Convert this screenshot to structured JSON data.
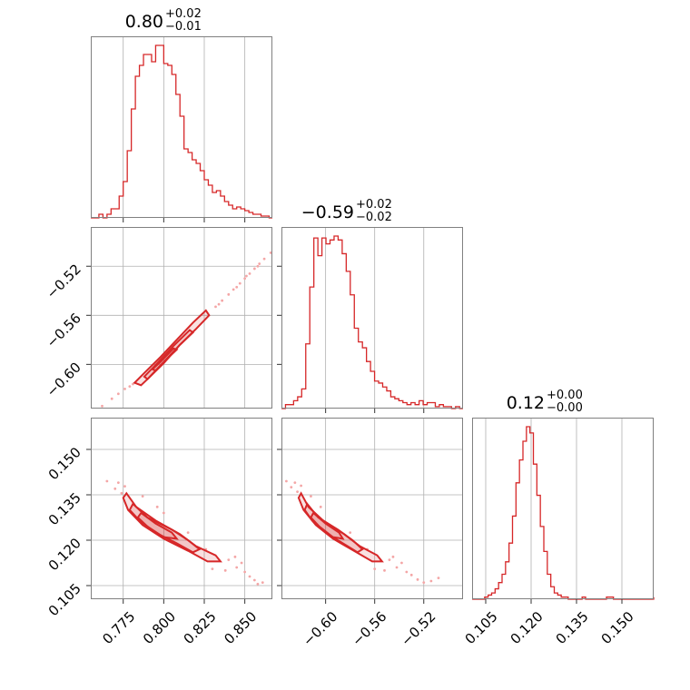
{
  "chart_data": {
    "type": "corner",
    "color": "#d62728",
    "parameters": [
      {
        "title_value": "0.80",
        "title_plus": "+0.02",
        "title_minus": "−0.01",
        "range": [
          0.755,
          0.867
        ],
        "ticks": [
          0.775,
          0.8,
          0.825,
          0.85
        ],
        "tick_labels": [
          "0.775",
          "0.800",
          "0.825",
          "0.850"
        ],
        "hist": {
          "edges_start": 0.755,
          "bin_width": 0.0025,
          "counts": [
            0,
            0,
            0.02,
            0,
            0.02,
            0.05,
            0.05,
            0.12,
            0.2,
            0.37,
            0.6,
            0.78,
            0.84,
            0.9,
            0.9,
            0.86,
            0.95,
            0.95,
            0.85,
            0.84,
            0.79,
            0.68,
            0.56,
            0.38,
            0.36,
            0.32,
            0.3,
            0.26,
            0.21,
            0.18,
            0.14,
            0.15,
            0.12,
            0.09,
            0.07,
            0.05,
            0.06,
            0.05,
            0.04,
            0.03,
            0.02,
            0.02,
            0.01,
            0.01,
            0.0
          ]
        }
      },
      {
        "title_value": "−0.59",
        "title_plus": "+0.02",
        "title_minus": "−0.02",
        "range": [
          -0.636,
          -0.488
        ],
        "ticks": [
          -0.6,
          -0.56,
          -0.52
        ],
        "tick_labels": [
          "−0.60",
          "−0.56",
          "−0.52"
        ],
        "hist": {
          "edges_start": -0.636,
          "bin_width": 0.0033,
          "counts": [
            0,
            0.02,
            0.02,
            0.04,
            0.06,
            0.1,
            0.33,
            0.62,
            0.87,
            0.78,
            0.87,
            0.84,
            0.86,
            0.88,
            0.86,
            0.79,
            0.7,
            0.58,
            0.41,
            0.34,
            0.31,
            0.24,
            0.19,
            0.14,
            0.13,
            0.11,
            0.09,
            0.06,
            0.05,
            0.04,
            0.03,
            0.02,
            0.03,
            0.02,
            0.04,
            0.02,
            0.03,
            0.03,
            0.01,
            0.02,
            0.01,
            0.01,
            0.0,
            0.01,
            0.0
          ]
        }
      },
      {
        "title_value": "0.12",
        "title_plus": "+0.00",
        "title_minus": "−0.00",
        "range": [
          0.1005,
          0.1605
        ],
        "ticks": [
          0.105,
          0.12,
          0.135,
          0.15
        ],
        "tick_labels": [
          "0.105",
          "0.120",
          "0.135",
          "0.150"
        ],
        "hist": {
          "edges_start": 0.1035,
          "bin_width": 0.00115,
          "counts": [
            0,
            0.01,
            0.02,
            0.03,
            0.05,
            0.08,
            0.12,
            0.18,
            0.27,
            0.4,
            0.56,
            0.67,
            0.76,
            0.83,
            0.8,
            0.65,
            0.5,
            0.35,
            0.23,
            0.12,
            0.06,
            0.03,
            0.02,
            0.01,
            0.01,
            0,
            0,
            0,
            0,
            0.01,
            0,
            0,
            0,
            0,
            0,
            0,
            0.01,
            0.01,
            0,
            0,
            0,
            0,
            0,
            0,
            0,
            0,
            0,
            0,
            0,
            0,
            0,
            0.01
          ]
        }
      }
    ],
    "pairs": [
      {
        "row": 1,
        "col": 0,
        "contours": [
          [
            [
              0.786,
              -0.617
            ],
            [
              0.79,
              -0.612
            ],
            [
              0.8,
              -0.599
            ],
            [
              0.81,
              -0.584
            ],
            [
              0.82,
              -0.571
            ],
            [
              0.828,
              -0.56
            ],
            [
              0.826,
              -0.556
            ],
            [
              0.818,
              -0.566
            ],
            [
              0.808,
              -0.58
            ],
            [
              0.798,
              -0.594
            ],
            [
              0.788,
              -0.607
            ],
            [
              0.782,
              -0.615
            ]
          ],
          [
            [
              0.79,
              -0.612
            ],
            [
              0.8,
              -0.598
            ],
            [
              0.81,
              -0.584
            ],
            [
              0.818,
              -0.574
            ],
            [
              0.816,
              -0.572
            ],
            [
              0.806,
              -0.585
            ],
            [
              0.796,
              -0.599
            ],
            [
              0.788,
              -0.61
            ]
          ],
          [
            [
              0.795,
              -0.605
            ],
            [
              0.804,
              -0.593
            ],
            [
              0.808,
              -0.588
            ],
            [
              0.806,
              -0.587
            ],
            [
              0.798,
              -0.598
            ],
            [
              0.793,
              -0.604
            ]
          ]
        ],
        "scatter": [
          [
            0.762,
            -0.634
          ],
          [
            0.768,
            -0.628
          ],
          [
            0.772,
            -0.624
          ],
          [
            0.776,
            -0.62
          ],
          [
            0.779,
            -0.618
          ],
          [
            0.781,
            -0.616
          ],
          [
            0.832,
            -0.553
          ],
          [
            0.836,
            -0.548
          ],
          [
            0.84,
            -0.543
          ],
          [
            0.843,
            -0.539
          ],
          [
            0.847,
            -0.534
          ],
          [
            0.85,
            -0.53
          ],
          [
            0.853,
            -0.526
          ],
          [
            0.856,
            -0.522
          ],
          [
            0.859,
            -0.518
          ],
          [
            0.862,
            -0.514
          ],
          [
            0.866,
            -0.509
          ],
          [
            0.834,
            -0.551
          ],
          [
            0.845,
            -0.537
          ],
          [
            0.851,
            -0.528
          ],
          [
            0.858,
            -0.52
          ]
        ]
      },
      {
        "row": 2,
        "col": 0,
        "contours": [
          [
            [
              0.777,
              0.1355
            ],
            [
              0.783,
              0.131
            ],
            [
              0.795,
              0.1265
            ],
            [
              0.81,
              0.122
            ],
            [
              0.82,
              0.118
            ],
            [
              0.832,
              0.115
            ],
            [
              0.835,
              0.113
            ],
            [
              0.827,
              0.113
            ],
            [
              0.815,
              0.1165
            ],
            [
              0.8,
              0.1205
            ],
            [
              0.787,
              0.125
            ],
            [
              0.778,
              0.13
            ],
            [
              0.775,
              0.134
            ]
          ],
          [
            [
              0.781,
              0.132
            ],
            [
              0.79,
              0.1275
            ],
            [
              0.805,
              0.1235
            ],
            [
              0.815,
              0.12
            ],
            [
              0.822,
              0.117
            ],
            [
              0.818,
              0.116
            ],
            [
              0.808,
              0.119
            ],
            [
              0.795,
              0.1225
            ],
            [
              0.785,
              0.1265
            ],
            [
              0.779,
              0.13
            ]
          ],
          [
            [
              0.786,
              0.129
            ],
            [
              0.795,
              0.1255
            ],
            [
              0.805,
              0.1225
            ],
            [
              0.808,
              0.1205
            ],
            [
              0.8,
              0.121
            ],
            [
              0.79,
              0.1245
            ],
            [
              0.784,
              0.1275
            ]
          ]
        ],
        "scatter": [
          [
            0.765,
            0.1395
          ],
          [
            0.77,
            0.137
          ],
          [
            0.772,
            0.139
          ],
          [
            0.774,
            0.1355
          ],
          [
            0.776,
            0.1378
          ],
          [
            0.84,
            0.1135
          ],
          [
            0.845,
            0.111
          ],
          [
            0.848,
            0.1125
          ],
          [
            0.85,
            0.1095
          ],
          [
            0.853,
            0.108
          ],
          [
            0.856,
            0.1068
          ],
          [
            0.858,
            0.1055
          ],
          [
            0.861,
            0.106
          ],
          [
            0.838,
            0.11
          ],
          [
            0.83,
            0.1105
          ],
          [
            0.844,
            0.1145
          ],
          [
            0.826,
            0.117
          ],
          [
            0.815,
            0.1225
          ],
          [
            0.796,
            0.131
          ],
          [
            0.787,
            0.1345
          ],
          [
            0.8,
            0.129
          ]
        ]
      },
      {
        "row": 2,
        "col": 1,
        "contours": [
          [
            [
              -0.62,
              0.1355
            ],
            [
              -0.614,
              0.131
            ],
            [
              -0.602,
              0.1265
            ],
            [
              -0.585,
              0.122
            ],
            [
              -0.572,
              0.118
            ],
            [
              -0.558,
              0.115
            ],
            [
              -0.554,
              0.113
            ],
            [
              -0.562,
              0.113
            ],
            [
              -0.577,
              0.1165
            ],
            [
              -0.594,
              0.1205
            ],
            [
              -0.608,
              0.125
            ],
            [
              -0.618,
              0.13
            ],
            [
              -0.622,
              0.134
            ]
          ],
          [
            [
              -0.615,
              0.132
            ],
            [
              -0.606,
              0.1275
            ],
            [
              -0.59,
              0.1235
            ],
            [
              -0.578,
              0.12
            ],
            [
              -0.57,
              0.117
            ],
            [
              -0.574,
              0.116
            ],
            [
              -0.586,
              0.119
            ],
            [
              -0.6,
              0.1225
            ],
            [
              -0.611,
              0.1265
            ],
            [
              -0.617,
              0.13
            ]
          ],
          [
            [
              -0.61,
              0.129
            ],
            [
              -0.6,
              0.1255
            ],
            [
              -0.589,
              0.1225
            ],
            [
              -0.586,
              0.1205
            ],
            [
              -0.594,
              0.121
            ],
            [
              -0.605,
              0.1245
            ],
            [
              -0.612,
              0.1275
            ]
          ]
        ],
        "scatter": [
          [
            -0.632,
            0.1395
          ],
          [
            -0.628,
            0.1375
          ],
          [
            -0.625,
            0.139
          ],
          [
            -0.623,
            0.136
          ],
          [
            -0.62,
            0.138
          ],
          [
            -0.548,
            0.1135
          ],
          [
            -0.542,
            0.111
          ],
          [
            -0.538,
            0.1125
          ],
          [
            -0.534,
            0.1095
          ],
          [
            -0.53,
            0.1085
          ],
          [
            -0.525,
            0.107
          ],
          [
            -0.52,
            0.106
          ],
          [
            -0.514,
            0.1065
          ],
          [
            -0.508,
            0.1075
          ],
          [
            -0.552,
            0.11
          ],
          [
            -0.56,
            0.1105
          ],
          [
            -0.545,
            0.1145
          ],
          [
            -0.566,
            0.117
          ],
          [
            -0.58,
            0.1225
          ],
          [
            -0.604,
            0.131
          ],
          [
            -0.612,
            0.1345
          ]
        ]
      }
    ]
  }
}
